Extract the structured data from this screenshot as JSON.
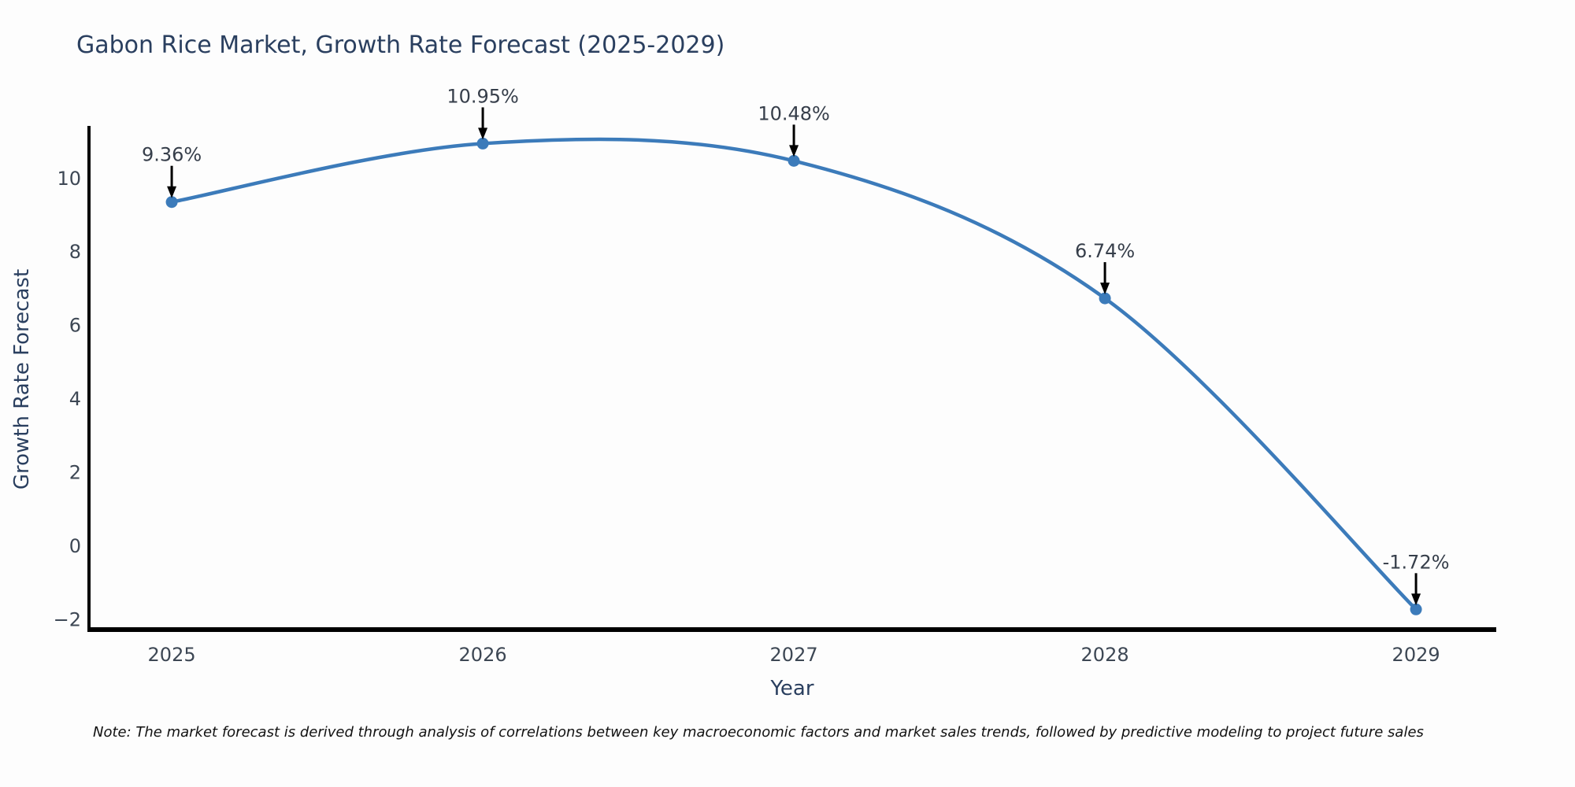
{
  "figure": {
    "title": "Gabon Rice Market, Growth Rate Forecast (2025-2029)",
    "note": "Note: The market forecast is derived through analysis of correlations between key macroeconomic factors and market sales trends, followed by predictive modeling to project future sales"
  },
  "chart_data": {
    "type": "line",
    "title": "Gabon Rice Market, Growth Rate Forecast (2025-2029)",
    "xlabel": "Year",
    "ylabel": "Growth Rate Forecast",
    "x": [
      2025,
      2026,
      2027,
      2028,
      2029
    ],
    "series": [
      {
        "name": "Growth Rate Forecast",
        "values": [
          9.36,
          10.95,
          10.48,
          6.74,
          -1.72
        ]
      }
    ],
    "point_labels": [
      "9.36%",
      "10.95%",
      "10.48%",
      "6.74%",
      "-1.72%"
    ],
    "xtick_labels": [
      "2025",
      "2026",
      "2027",
      "2028",
      "2029"
    ],
    "ytick_values": [
      10,
      8,
      6,
      4,
      2,
      0,
      -2
    ],
    "xlim": [
      2024.734,
      2029.258
    ],
    "ylim": [
      -2.27,
      11.43
    ],
    "grid": false,
    "legend": "none",
    "line_shape": "spline",
    "annotation_style": "label-above-with-down-arrow",
    "colors": {
      "line": "#3c7bba",
      "marker": "#3c7bba",
      "axis": "#000000",
      "arrow": "#000000",
      "title_text": "#2a3f5f",
      "tick_text": "#3d4754",
      "annotation_text": "#363e4a",
      "background": "#fdfdfd"
    }
  }
}
